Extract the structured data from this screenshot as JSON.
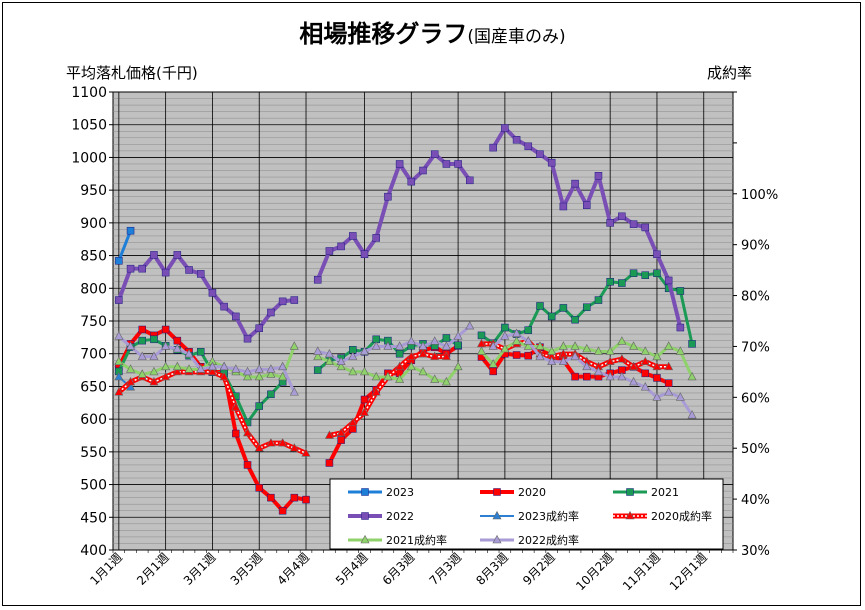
{
  "title": "相場推移グラフ",
  "subtitle": "(国産車のみ)",
  "chart_data": {
    "type": "line",
    "title": "相場推移グラフ",
    "subtitle": "(国産車のみ)",
    "ylabel": "平均落札価格(千円)",
    "y2label": "成約率",
    "ylim": [
      400,
      1100
    ],
    "y2lim": [
      30,
      120
    ],
    "yticks": [
      400,
      450,
      500,
      550,
      600,
      650,
      700,
      750,
      800,
      850,
      900,
      950,
      1000,
      1050,
      1100
    ],
    "y2ticks": [
      "30%",
      "40%",
      "50%",
      "60%",
      "70%",
      "80%",
      "90%",
      "100%"
    ],
    "xlabels": [
      "1月1週",
      "2月1週",
      "3月1週",
      "3月5週",
      "4月4週",
      "5月4週",
      "6月3週",
      "7月3週",
      "8月3週",
      "9月2週",
      "10月2週",
      "11月1週",
      "12月1週"
    ],
    "x_label_index": [
      0,
      4,
      8,
      12,
      16,
      21,
      25,
      29,
      33,
      37,
      42,
      46,
      50
    ],
    "n_weeks": 53,
    "legend_position": "bottom-right",
    "series": [
      {
        "name": "2023",
        "axis": "left",
        "color": "#1e7fd8",
        "marker": "square",
        "width": 3,
        "values": [
          [
            0,
            842
          ],
          [
            1,
            888
          ]
        ]
      },
      {
        "name": "2020",
        "axis": "left",
        "color": "#ff0000",
        "marker": "square",
        "width": 4,
        "values": [
          [
            0,
            680
          ],
          [
            1,
            715
          ],
          [
            2,
            737
          ],
          [
            3,
            728
          ],
          [
            4,
            737
          ],
          [
            5,
            720
          ],
          [
            6,
            703
          ],
          [
            7,
            680
          ],
          [
            8,
            672
          ],
          [
            9,
            672
          ],
          [
            10,
            578
          ],
          [
            11,
            530
          ],
          [
            12,
            495
          ],
          [
            13,
            480
          ],
          [
            14,
            460
          ],
          [
            15,
            480
          ],
          [
            16,
            477
          ],
          null,
          [
            18,
            533
          ],
          [
            19,
            568
          ],
          [
            20,
            585
          ],
          [
            21,
            630
          ],
          [
            22,
            645
          ],
          [
            23,
            670
          ],
          [
            24,
            670
          ],
          [
            25,
            690
          ],
          [
            26,
            705
          ],
          [
            27,
            710
          ],
          [
            28,
            700
          ],
          [
            29,
            712
          ],
          null,
          [
            31,
            695
          ],
          [
            32,
            673
          ],
          [
            33,
            700
          ],
          [
            34,
            698
          ],
          [
            35,
            697
          ],
          [
            36,
            710
          ],
          [
            37,
            696
          ],
          [
            38,
            690
          ],
          [
            39,
            665
          ],
          [
            40,
            665
          ],
          [
            41,
            665
          ],
          [
            42,
            670
          ],
          [
            43,
            675
          ],
          [
            44,
            680
          ],
          [
            45,
            670
          ],
          [
            46,
            663
          ],
          [
            47,
            655
          ]
        ]
      },
      {
        "name": "2021",
        "axis": "left",
        "color": "#1a9a55",
        "marker": "square",
        "width": 3,
        "values": [
          [
            0,
            673
          ],
          [
            1,
            710
          ],
          [
            2,
            720
          ],
          [
            3,
            722
          ],
          [
            4,
            712
          ],
          [
            5,
            706
          ],
          [
            6,
            697
          ],
          [
            7,
            703
          ],
          [
            8,
            672
          ],
          [
            9,
            670
          ],
          [
            10,
            635
          ],
          [
            11,
            595
          ],
          [
            12,
            620
          ],
          [
            13,
            638
          ],
          [
            14,
            657
          ],
          null,
          null,
          [
            17,
            675
          ],
          [
            18,
            690
          ],
          [
            19,
            693
          ],
          [
            20,
            706
          ],
          [
            21,
            703
          ],
          [
            22,
            722
          ],
          [
            23,
            720
          ],
          [
            24,
            700
          ],
          [
            25,
            712
          ],
          [
            26,
            715
          ],
          [
            27,
            712
          ],
          [
            28,
            724
          ],
          [
            29,
            713
          ],
          null,
          [
            31,
            728
          ],
          [
            32,
            716
          ],
          [
            33,
            740
          ],
          [
            34,
            730
          ],
          [
            35,
            736
          ],
          [
            36,
            773
          ],
          [
            37,
            757
          ],
          [
            38,
            770
          ],
          [
            39,
            752
          ],
          [
            40,
            771
          ],
          [
            41,
            782
          ],
          [
            42,
            810
          ],
          [
            43,
            808
          ],
          [
            44,
            823
          ],
          [
            45,
            820
          ],
          [
            46,
            823
          ],
          [
            47,
            800
          ],
          [
            48,
            796
          ],
          [
            49,
            715
          ]
        ]
      },
      {
        "name": "2022",
        "axis": "left",
        "color": "#7a4fb5",
        "marker": "square",
        "width": 4,
        "values": [
          [
            0,
            782
          ],
          [
            1,
            830
          ],
          [
            2,
            830
          ],
          [
            3,
            851
          ],
          [
            4,
            824
          ],
          [
            5,
            851
          ],
          [
            6,
            828
          ],
          [
            7,
            822
          ],
          [
            8,
            793
          ],
          [
            9,
            772
          ],
          [
            10,
            757
          ],
          [
            11,
            723
          ],
          [
            12,
            739
          ],
          [
            13,
            763
          ],
          [
            14,
            780
          ],
          [
            15,
            782
          ],
          null,
          [
            17,
            813
          ],
          [
            18,
            857
          ],
          [
            19,
            864
          ],
          [
            20,
            880
          ],
          [
            21,
            852
          ],
          [
            22,
            877
          ],
          [
            23,
            940
          ],
          [
            24,
            990
          ],
          [
            25,
            963
          ],
          [
            26,
            980
          ],
          [
            27,
            1005
          ],
          [
            28,
            990
          ],
          [
            29,
            990
          ],
          [
            30,
            965
          ],
          null,
          [
            32,
            1015
          ],
          [
            33,
            1045
          ],
          [
            34,
            1027
          ],
          [
            35,
            1017
          ],
          [
            36,
            1005
          ],
          [
            37,
            992
          ],
          [
            38,
            925
          ],
          [
            39,
            960
          ],
          [
            40,
            927
          ],
          [
            41,
            972
          ],
          [
            42,
            900
          ],
          [
            43,
            910
          ],
          [
            44,
            898
          ],
          [
            45,
            893
          ],
          [
            46,
            852
          ],
          [
            47,
            812
          ],
          [
            48,
            740
          ]
        ]
      },
      {
        "name": "2023成約率",
        "axis": "right",
        "color": "#2c7fd1",
        "marker": "triangle",
        "width": 2,
        "values": [
          [
            0,
            64
          ],
          [
            1,
            62
          ]
        ]
      },
      {
        "name": "2020成約率",
        "axis": "right",
        "color": "#ff0000",
        "marker": "triangle",
        "width": 4,
        "hatched": true,
        "values": [
          [
            0,
            61
          ],
          [
            1,
            63
          ],
          [
            2,
            64
          ],
          [
            3,
            63
          ],
          [
            4,
            64
          ],
          [
            5,
            65
          ],
          [
            6,
            65
          ],
          [
            7,
            65
          ],
          [
            8,
            65
          ],
          [
            9,
            64
          ],
          [
            10,
            58
          ],
          [
            11,
            53
          ],
          [
            12,
            50
          ],
          [
            13,
            51
          ],
          [
            14,
            51
          ],
          [
            15,
            50
          ],
          [
            16,
            49
          ],
          null,
          [
            18,
            52.5
          ],
          [
            19,
            53
          ],
          [
            20,
            55
          ],
          [
            21,
            57
          ],
          [
            22,
            61
          ],
          [
            23,
            64
          ],
          [
            24,
            66
          ],
          [
            25,
            68
          ],
          [
            26,
            68.5
          ],
          [
            27,
            68
          ],
          [
            28,
            68
          ],
          null,
          null,
          [
            31,
            70.5
          ],
          [
            32,
            70.5
          ],
          [
            33,
            69.5
          ],
          [
            34,
            70.5
          ],
          [
            35,
            71
          ],
          [
            36,
            68.5
          ],
          [
            37,
            68
          ],
          [
            38,
            68.5
          ],
          [
            39,
            68.5
          ],
          [
            40,
            67
          ],
          [
            41,
            66
          ],
          [
            42,
            67
          ],
          [
            43,
            67.5
          ],
          [
            44,
            66
          ],
          [
            45,
            67
          ],
          [
            46,
            66
          ],
          [
            47,
            66
          ]
        ]
      },
      {
        "name": "2021成約率",
        "axis": "right",
        "color": "#8fd16a",
        "marker": "triangle",
        "width": 3,
        "values": [
          [
            0,
            67
          ],
          [
            1,
            65.5
          ],
          [
            2,
            64.5
          ],
          [
            3,
            65
          ],
          [
            4,
            66
          ],
          [
            5,
            66
          ],
          [
            6,
            65.5
          ],
          [
            7,
            65.5
          ],
          [
            8,
            67
          ],
          [
            9,
            66
          ],
          [
            10,
            65
          ],
          [
            11,
            64
          ],
          [
            12,
            64
          ],
          [
            13,
            64.5
          ],
          [
            14,
            64
          ],
          [
            15,
            70
          ],
          null,
          [
            17,
            68
          ],
          [
            18,
            67
          ],
          [
            19,
            66
          ],
          [
            20,
            65
          ],
          [
            21,
            65
          ],
          [
            22,
            64
          ],
          [
            23,
            64
          ],
          [
            24,
            63.5
          ],
          [
            25,
            66
          ],
          [
            26,
            65
          ],
          [
            27,
            63.5
          ],
          [
            28,
            63
          ],
          [
            29,
            66
          ],
          null,
          [
            31,
            69
          ],
          [
            32,
            66.5
          ],
          [
            33,
            69.5
          ],
          [
            34,
            71
          ],
          [
            35,
            70
          ],
          [
            36,
            70
          ],
          [
            37,
            69
          ],
          [
            38,
            70
          ],
          [
            39,
            70
          ],
          [
            40,
            69.5
          ],
          [
            41,
            69
          ],
          [
            42,
            69
          ],
          [
            43,
            71
          ],
          [
            44,
            70
          ],
          [
            45,
            69
          ],
          [
            46,
            68
          ],
          [
            47,
            70
          ],
          [
            48,
            69
          ],
          [
            49,
            64
          ]
        ]
      },
      {
        "name": "2022成約率",
        "axis": "right",
        "color": "#a89bd6",
        "marker": "triangle",
        "width": 3,
        "values": [
          [
            0,
            72
          ],
          [
            1,
            70
          ],
          [
            2,
            68
          ],
          [
            3,
            68
          ],
          [
            4,
            70
          ],
          [
            5,
            69.5
          ],
          [
            6,
            68.5
          ],
          [
            7,
            65.5
          ],
          [
            8,
            66
          ],
          [
            9,
            66
          ],
          [
            10,
            65.5
          ],
          [
            11,
            65
          ],
          [
            12,
            65.5
          ],
          [
            13,
            65.5
          ],
          [
            14,
            66
          ],
          [
            15,
            61
          ],
          null,
          [
            17,
            69
          ],
          [
            18,
            68.5
          ],
          [
            19,
            67
          ],
          [
            20,
            68
          ],
          [
            21,
            69
          ],
          [
            22,
            70
          ],
          [
            23,
            70
          ],
          [
            24,
            70
          ],
          [
            25,
            71
          ],
          [
            26,
            70
          ],
          [
            27,
            71
          ],
          [
            28,
            70
          ],
          [
            29,
            72
          ],
          [
            30,
            74
          ],
          null,
          [
            32,
            70
          ],
          [
            33,
            72
          ],
          [
            34,
            72.5
          ],
          [
            35,
            71
          ],
          [
            36,
            68
          ],
          [
            37,
            67
          ],
          [
            38,
            67
          ],
          [
            39,
            68
          ],
          [
            40,
            66
          ],
          [
            41,
            65
          ],
          [
            42,
            64
          ],
          [
            43,
            64
          ],
          [
            44,
            63
          ],
          [
            45,
            62
          ],
          [
            46,
            60
          ],
          [
            47,
            61
          ],
          [
            48,
            60
          ],
          [
            49,
            56.5
          ]
        ]
      }
    ],
    "legend_order": [
      "2023",
      "2020",
      "2021",
      "2022",
      "2023成約率",
      "2020成約率",
      "2021成約率",
      "2022成約率"
    ]
  }
}
